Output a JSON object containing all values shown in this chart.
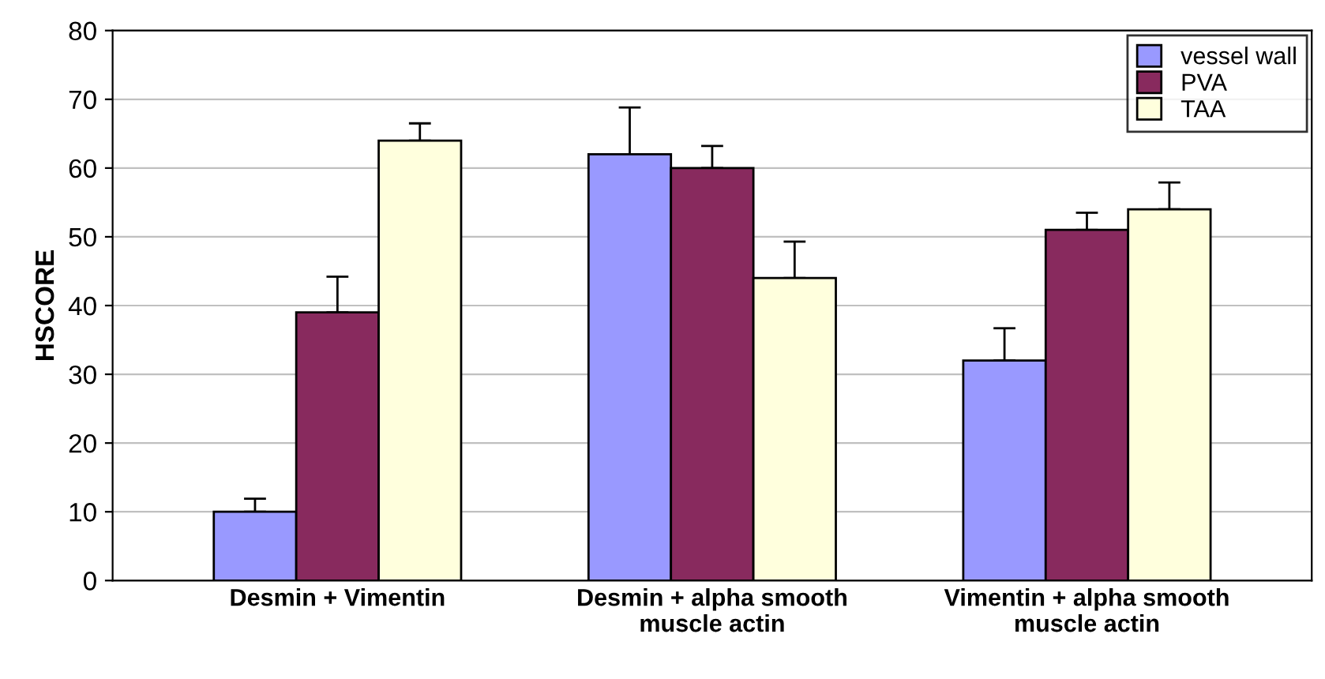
{
  "chart_data": {
    "type": "bar",
    "ylabel": "HSCORE",
    "categories": [
      "Desmin + Vimentin",
      "Desmin + alpha smooth\nmuscle actin",
      "Vimentin + alpha smooth\nmuscle actin"
    ],
    "series": [
      {
        "name": "vessel wall",
        "color": "#9999ff",
        "values": [
          10,
          62,
          32
        ],
        "errors": [
          [
            10,
            11.9
          ],
          [
            62,
            68.8
          ],
          [
            32,
            36.7
          ]
        ]
      },
      {
        "name": "PVA",
        "color": "#882a5e",
        "values": [
          39,
          60,
          51
        ],
        "errors": [
          [
            39,
            44.2
          ],
          [
            60,
            63.2
          ],
          [
            51,
            53.5
          ]
        ]
      },
      {
        "name": "TAA",
        "color": "#ffffdd",
        "values": [
          64,
          44,
          54
        ],
        "errors": [
          [
            64,
            66.5
          ],
          [
            44,
            49.3
          ],
          [
            54,
            57.9
          ]
        ]
      }
    ],
    "ylim": [
      0,
      80
    ],
    "yticks": [
      0,
      10,
      20,
      30,
      40,
      50,
      60,
      70,
      80
    ],
    "grid": "y",
    "legend": "top right"
  }
}
